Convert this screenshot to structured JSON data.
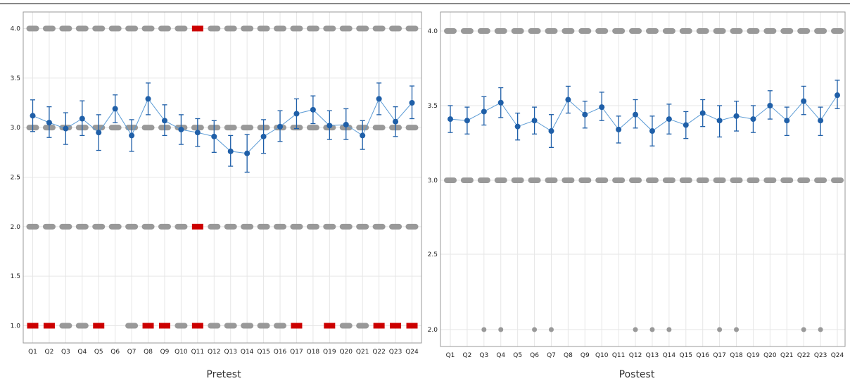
{
  "chart_data": [
    {
      "type": "line",
      "panel": "pretest",
      "title": "Pretest",
      "categories": [
        "Q1",
        "Q2",
        "Q3",
        "Q4",
        "Q5",
        "Q6",
        "Q7",
        "Q8",
        "Q9",
        "Q10",
        "Q11",
        "Q12",
        "Q13",
        "Q14",
        "Q15",
        "Q16",
        "Q17",
        "Q18",
        "Q19",
        "Q20",
        "Q21",
        "Q22",
        "Q23",
        "Q24"
      ],
      "y_ticks": [
        "1.0",
        "1.5",
        "2.0",
        "2.5",
        "3.0",
        "3.5",
        "4.0"
      ],
      "ylim": [
        0.8,
        4.15
      ],
      "grid": true,
      "series": [
        {
          "type": "mean_with_error_bars",
          "values": [
            3.12,
            3.05,
            2.99,
            3.09,
            2.95,
            3.19,
            2.92,
            3.29,
            3.07,
            2.98,
            2.95,
            2.91,
            2.76,
            2.74,
            2.91,
            3.01,
            3.14,
            3.18,
            3.02,
            3.03,
            2.92,
            3.29,
            3.06,
            3.25
          ],
          "lower": [
            2.96,
            2.9,
            2.83,
            2.92,
            2.77,
            3.05,
            2.76,
            3.13,
            2.92,
            2.83,
            2.81,
            2.75,
            2.61,
            2.55,
            2.74,
            2.86,
            2.99,
            3.04,
            2.88,
            2.88,
            2.78,
            3.13,
            2.91,
            3.09
          ],
          "upper": [
            3.28,
            3.21,
            3.15,
            3.27,
            3.13,
            3.33,
            3.08,
            3.45,
            3.23,
            3.13,
            3.09,
            3.07,
            2.92,
            2.93,
            3.08,
            3.17,
            3.29,
            3.32,
            3.17,
            3.19,
            3.07,
            3.45,
            3.21,
            3.42
          ],
          "color": "#1f5fa8",
          "line_color": "#5b9bd5"
        },
        {
          "type": "individual_responses",
          "levels": [
            {
              "y": 4.0,
              "columns": [
                1,
                2,
                3,
                4,
                5,
                6,
                7,
                8,
                9,
                10,
                11,
                12,
                13,
                14,
                15,
                16,
                17,
                18,
                19,
                20,
                21,
                22,
                23,
                24
              ]
            },
            {
              "y": 3.0,
              "columns": [
                1,
                2,
                3,
                4,
                5,
                6,
                7,
                8,
                9,
                10,
                11,
                12,
                13,
                14,
                15,
                16,
                17,
                18,
                19,
                20,
                21,
                22,
                23,
                24
              ]
            },
            {
              "y": 2.0,
              "columns": [
                1,
                2,
                3,
                4,
                5,
                6,
                7,
                8,
                9,
                10,
                11,
                12,
                13,
                14,
                15,
                16,
                17,
                18,
                19,
                20,
                21,
                22,
                23,
                24
              ]
            },
            {
              "y": 1.0,
              "columns": [
                1,
                2,
                3,
                4,
                5,
                7,
                8,
                9,
                10,
                11,
                12,
                13,
                14,
                15,
                16,
                17,
                19,
                20,
                21,
                22,
                23,
                24
              ]
            }
          ],
          "highlighted": [
            {
              "y": 4.0,
              "columns": [
                11
              ]
            },
            {
              "y": 2.0,
              "columns": [
                11
              ]
            },
            {
              "y": 1.0,
              "columns": [
                1,
                2,
                5,
                8,
                9,
                11,
                17,
                19,
                22,
                23,
                24
              ]
            }
          ],
          "color": "#999999",
          "highlight_color": "#cc0000"
        }
      ]
    },
    {
      "type": "line",
      "panel": "posttest",
      "title": "Postest",
      "categories": [
        "Q1",
        "Q2",
        "Q3",
        "Q4",
        "Q5",
        "Q6",
        "Q7",
        "Q8",
        "Q9",
        "Q10",
        "Q11",
        "Q12",
        "Q13",
        "Q14",
        "Q15",
        "Q16",
        "Q17",
        "Q18",
        "Q19",
        "Q20",
        "Q21",
        "Q22",
        "Q23",
        "Q24"
      ],
      "y_ticks": [
        "2.0",
        "2.5",
        "3.0",
        "3.5",
        "4.0"
      ],
      "y_tick_values": [
        2.0,
        2.5,
        3.0,
        3.5,
        4.0
      ],
      "y_tick_order_note": "",
      "ylim": [
        1.9,
        4.08
      ],
      "grid": true,
      "series": [
        {
          "type": "mean_with_error_bars",
          "values": [
            3.41,
            3.4,
            3.46,
            3.52,
            3.36,
            3.4,
            3.33,
            3.54,
            3.44,
            3.49,
            3.34,
            3.44,
            3.33,
            3.41,
            3.37,
            3.45,
            3.4,
            3.43,
            3.41,
            3.5,
            3.4,
            3.53,
            3.4,
            3.57
          ],
          "lower": [
            3.32,
            3.31,
            3.37,
            3.42,
            3.27,
            3.31,
            3.22,
            3.45,
            3.35,
            3.4,
            3.25,
            3.35,
            3.23,
            3.31,
            3.28,
            3.36,
            3.29,
            3.33,
            3.32,
            3.41,
            3.3,
            3.44,
            3.3,
            3.48
          ],
          "upper": [
            3.5,
            3.49,
            3.56,
            3.62,
            3.45,
            3.49,
            3.44,
            3.63,
            3.53,
            3.59,
            3.43,
            3.54,
            3.43,
            3.51,
            3.46,
            3.54,
            3.5,
            3.53,
            3.5,
            3.6,
            3.49,
            3.63,
            3.49,
            3.67
          ],
          "color": "#1f5fa8",
          "line_color": "#5b9bd5"
        },
        {
          "type": "individual_responses",
          "levels": [
            {
              "y": 4.0,
              "columns": [
                1,
                2,
                3,
                4,
                5,
                6,
                7,
                8,
                9,
                10,
                11,
                12,
                13,
                14,
                15,
                16,
                17,
                18,
                19,
                20,
                21,
                22,
                23,
                24
              ]
            },
            {
              "y": 3.0,
              "columns": [
                1,
                2,
                3,
                4,
                5,
                6,
                7,
                8,
                9,
                10,
                11,
                12,
                13,
                14,
                15,
                16,
                17,
                18,
                19,
                20,
                21,
                22,
                23,
                24
              ]
            },
            {
              "y": 2.0,
              "columns": [
                3,
                4,
                6,
                7,
                12,
                13,
                14,
                17,
                18,
                22,
                23
              ]
            }
          ],
          "highlighted": [],
          "color": "#999999",
          "highlight_color": "#cc0000"
        }
      ]
    }
  ]
}
